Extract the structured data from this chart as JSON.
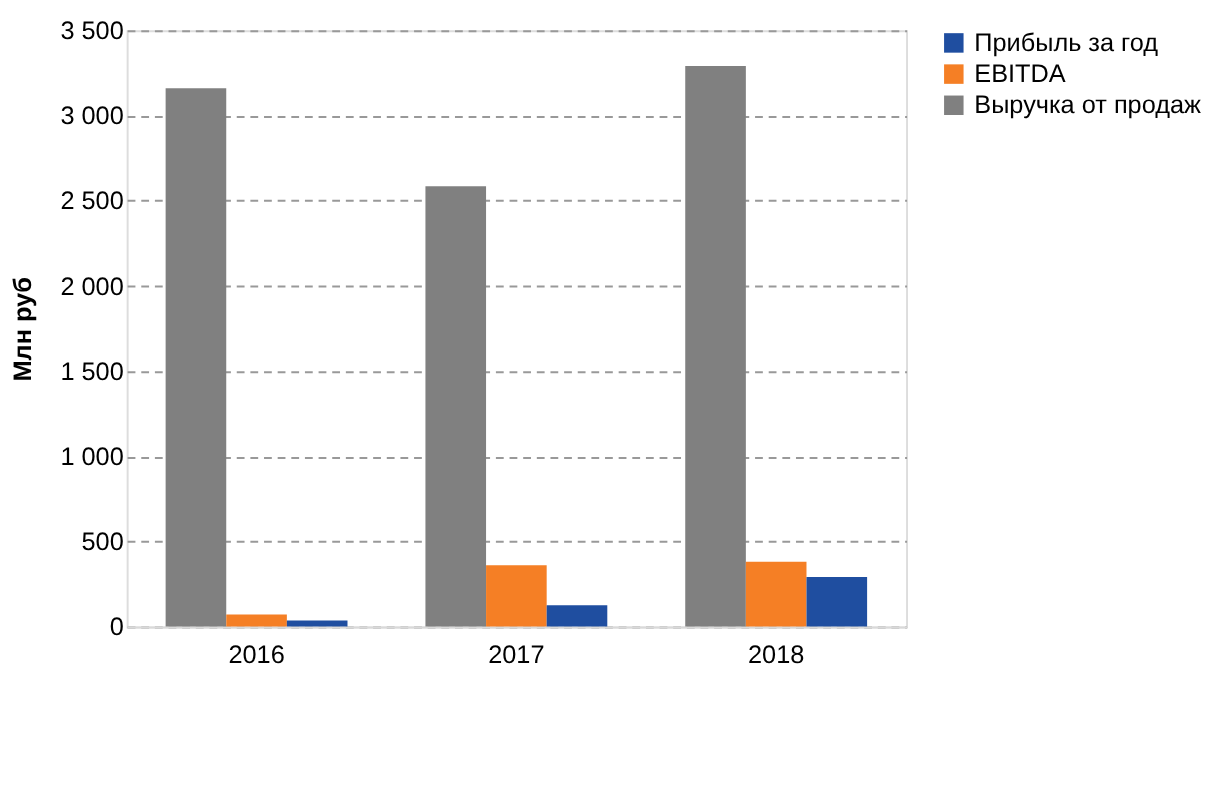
{
  "chart_data": {
    "type": "bar",
    "ylabel": "Млн руб",
    "categories": [
      "2016",
      "2017",
      "2018"
    ],
    "series": [
      {
        "name": "Выручка от продаж",
        "color": "#808080",
        "values": [
          3160,
          2585,
          3290
        ]
      },
      {
        "name": "EBITDA",
        "color": "#f57f25",
        "values": [
          70,
          360,
          380
        ]
      },
      {
        "name": "Прибыль за год",
        "color": "#1f4ea0",
        "values": [
          35,
          125,
          290
        ]
      }
    ],
    "ylim": [
      0,
      3500
    ],
    "yticks": [
      {
        "value": 0,
        "label": "0"
      },
      {
        "value": 500,
        "label": "500"
      },
      {
        "value": 1000,
        "label": "1 000"
      },
      {
        "value": 1500,
        "label": "1 500"
      },
      {
        "value": 2000,
        "label": "2 000"
      },
      {
        "value": 2500,
        "label": "2 500"
      },
      {
        "value": 3000,
        "label": "3 000"
      },
      {
        "value": 3500,
        "label": "3 500"
      }
    ],
    "grid": "y",
    "legend": "right"
  }
}
